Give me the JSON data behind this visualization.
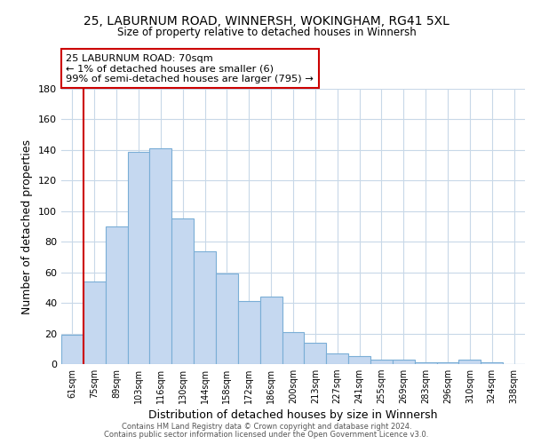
{
  "title1": "25, LABURNUM ROAD, WINNERSH, WOKINGHAM, RG41 5XL",
  "title2": "Size of property relative to detached houses in Winnersh",
  "xlabel": "Distribution of detached houses by size in Winnersh",
  "ylabel": "Number of detached properties",
  "bar_labels": [
    "61sqm",
    "75sqm",
    "89sqm",
    "103sqm",
    "116sqm",
    "130sqm",
    "144sqm",
    "158sqm",
    "172sqm",
    "186sqm",
    "200sqm",
    "213sqm",
    "227sqm",
    "241sqm",
    "255sqm",
    "269sqm",
    "283sqm",
    "296sqm",
    "310sqm",
    "324sqm",
    "338sqm"
  ],
  "bar_values": [
    19,
    54,
    90,
    139,
    141,
    95,
    74,
    59,
    41,
    44,
    21,
    14,
    7,
    5,
    3,
    3,
    1,
    1,
    3,
    1,
    0
  ],
  "bar_color": "#c5d8f0",
  "bar_edge_color": "#7aaed6",
  "highlight_bar_edge_color": "#cc0000",
  "annotation_title": "25 LABURNUM ROAD: 70sqm",
  "annotation_line1": "← 1% of detached houses are smaller (6)",
  "annotation_line2": "99% of semi-detached houses are larger (795) →",
  "annotation_box_color": "#ffffff",
  "annotation_box_edge_color": "#cc0000",
  "ylim": [
    0,
    180
  ],
  "yticks": [
    0,
    20,
    40,
    60,
    80,
    100,
    120,
    140,
    160,
    180
  ],
  "footer1": "Contains HM Land Registry data © Crown copyright and database right 2024.",
  "footer2": "Contains public sector information licensed under the Open Government Licence v3.0.",
  "background_color": "#ffffff",
  "grid_color": "#c8d8e8"
}
